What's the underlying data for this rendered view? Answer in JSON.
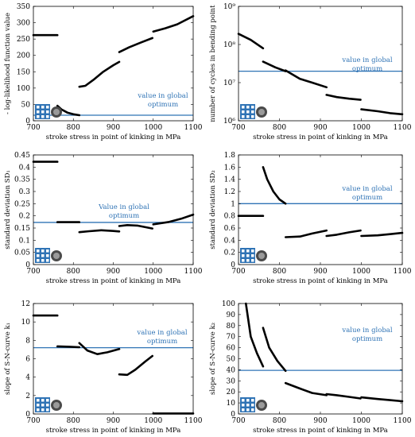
{
  "chart_data": [
    {
      "type": "line",
      "xlabel": "stroke stress in point of kinking in MPa",
      "ylabel": "- log-likelihood function value",
      "xlim": [
        700,
        1100
      ],
      "ylim": [
        0,
        350
      ],
      "xticks": [
        700,
        800,
        900,
        1000,
        1100
      ],
      "yticks": [
        0,
        50,
        100,
        150,
        200,
        250,
        300,
        350
      ],
      "reference": {
        "value": 17,
        "label": [
          "value in global",
          "optimum"
        ],
        "color": "#2f73b5"
      },
      "segments": [
        [
          [
            700,
            262
          ],
          [
            760,
            262
          ]
        ],
        [
          [
            760,
            46
          ],
          [
            770,
            35
          ],
          [
            785,
            25
          ],
          [
            800,
            20
          ],
          [
            815,
            17
          ]
        ],
        [
          [
            815,
            104
          ],
          [
            830,
            107
          ],
          [
            850,
            125
          ],
          [
            875,
            150
          ],
          [
            900,
            170
          ],
          [
            915,
            180
          ]
        ],
        [
          [
            915,
            210
          ],
          [
            940,
            225
          ],
          [
            970,
            240
          ],
          [
            998,
            253
          ]
        ],
        [
          [
            1000,
            273
          ],
          [
            1030,
            283
          ],
          [
            1060,
            295
          ],
          [
            1100,
            320
          ]
        ]
      ]
    },
    {
      "type": "line",
      "xlabel": "stroke stress in point of kinking in MPa",
      "ylabel": "number of cycles in bending point",
      "xlim": [
        700,
        1100
      ],
      "ylim": [
        6,
        9
      ],
      "log_y": true,
      "yticks": [
        6,
        7,
        8,
        9
      ],
      "yticklabels": [
        "10⁶",
        "10⁷",
        "10⁸",
        "10⁹"
      ],
      "xticks": [
        700,
        800,
        900,
        1000,
        1100
      ],
      "reference": {
        "value": 7.3,
        "label": [
          "value in global",
          "optimum"
        ],
        "color": "#2f73b5"
      },
      "segments": [
        [
          [
            700,
            8.28
          ],
          [
            730,
            8.12
          ],
          [
            760,
            7.9
          ]
        ],
        [
          [
            760,
            7.55
          ],
          [
            790,
            7.4
          ],
          [
            815,
            7.3
          ]
        ],
        [
          [
            815,
            7.32
          ],
          [
            850,
            7.1
          ],
          [
            880,
            7.0
          ],
          [
            915,
            6.88
          ]
        ],
        [
          [
            915,
            6.68
          ],
          [
            940,
            6.62
          ],
          [
            970,
            6.58
          ],
          [
            998,
            6.55
          ]
        ],
        [
          [
            1000,
            6.3
          ],
          [
            1040,
            6.25
          ],
          [
            1070,
            6.2
          ],
          [
            1100,
            6.17
          ]
        ]
      ]
    },
    {
      "type": "line",
      "xlabel": "stroke stress in point of kinking in MPa",
      "ylabel": "standard deviation SD₁",
      "xlim": [
        700,
        1100
      ],
      "ylim": [
        0,
        0.45
      ],
      "xticks": [
        700,
        800,
        900,
        1000,
        1100
      ],
      "yticks": [
        0,
        0.05,
        0.1,
        0.15,
        0.2,
        0.25,
        0.3,
        0.35,
        0.4,
        0.45
      ],
      "yticklabels": [
        "0",
        "0.05",
        "0.1",
        "0.15",
        "0.2",
        "0.25",
        "0.3",
        "0.35",
        "0.4",
        "0.45"
      ],
      "reference": {
        "value": 0.173,
        "label": [
          "Value in global",
          "optimum"
        ],
        "color": "#2f73b5"
      },
      "segments": [
        [
          [
            700,
            0.422
          ],
          [
            760,
            0.422
          ]
        ],
        [
          [
            760,
            0.174
          ],
          [
            815,
            0.174
          ]
        ],
        [
          [
            815,
            0.133
          ],
          [
            840,
            0.137
          ],
          [
            870,
            0.141
          ],
          [
            900,
            0.138
          ],
          [
            915,
            0.136
          ]
        ],
        [
          [
            915,
            0.158
          ],
          [
            935,
            0.162
          ],
          [
            960,
            0.16
          ],
          [
            998,
            0.148
          ]
        ],
        [
          [
            1000,
            0.165
          ],
          [
            1040,
            0.175
          ],
          [
            1070,
            0.188
          ],
          [
            1100,
            0.205
          ]
        ]
      ]
    },
    {
      "type": "line",
      "xlabel": "stroke stress in point of kinking in MPa",
      "ylabel": "standard deviation SD₂",
      "xlim": [
        700,
        1100
      ],
      "ylim": [
        0,
        1.8
      ],
      "xticks": [
        700,
        800,
        900,
        1000,
        1100
      ],
      "yticks": [
        0,
        0.2,
        0.4,
        0.6,
        0.8,
        1,
        1.2,
        1.4,
        1.6,
        1.8
      ],
      "yticklabels": [
        "0",
        "0.2",
        "0.4",
        "0.6",
        "0.8",
        "1",
        "1.2",
        "1.4",
        "1.6",
        "1.8"
      ],
      "reference": {
        "value": 1.0,
        "label": [
          "value in global",
          "optimum"
        ],
        "color": "#2f73b5"
      },
      "segments": [
        [
          [
            700,
            0.8
          ],
          [
            760,
            0.8
          ]
        ],
        [
          [
            760,
            1.6
          ],
          [
            770,
            1.4
          ],
          [
            785,
            1.2
          ],
          [
            800,
            1.07
          ],
          [
            815,
            1.0
          ]
        ],
        [
          [
            815,
            0.45
          ],
          [
            850,
            0.46
          ],
          [
            880,
            0.51
          ],
          [
            915,
            0.56
          ]
        ],
        [
          [
            915,
            0.47
          ],
          [
            940,
            0.49
          ],
          [
            970,
            0.53
          ],
          [
            998,
            0.56
          ]
        ],
        [
          [
            1000,
            0.47
          ],
          [
            1040,
            0.48
          ],
          [
            1070,
            0.5
          ],
          [
            1100,
            0.52
          ]
        ]
      ]
    },
    {
      "type": "line",
      "xlabel": "stroke stress in point of kinking in MPa",
      "ylabel": "slope of S-N-curve k₁",
      "xlim": [
        700,
        1100
      ],
      "ylim": [
        0,
        12
      ],
      "xticks": [
        700,
        800,
        900,
        1000,
        1100
      ],
      "yticks": [
        0,
        2,
        4,
        6,
        8,
        10,
        12
      ],
      "reference": {
        "value": 7.2,
        "label": [
          "value in global",
          "optimum"
        ],
        "color": "#2f73b5"
      },
      "segments": [
        [
          [
            700,
            10.7
          ],
          [
            760,
            10.7
          ]
        ],
        [
          [
            760,
            7.35
          ],
          [
            790,
            7.3
          ],
          [
            815,
            7.25
          ]
        ],
        [
          [
            815,
            7.7
          ],
          [
            835,
            6.9
          ],
          [
            860,
            6.5
          ],
          [
            885,
            6.7
          ],
          [
            915,
            7.05
          ]
        ],
        [
          [
            915,
            4.3
          ],
          [
            935,
            4.25
          ],
          [
            955,
            4.8
          ],
          [
            980,
            5.7
          ],
          [
            998,
            6.3
          ]
        ],
        [
          [
            1000,
            0.05
          ],
          [
            1050,
            0.05
          ],
          [
            1100,
            0.05
          ]
        ]
      ]
    },
    {
      "type": "line",
      "xlabel": "stroke stress in point of kinking in MPa",
      "ylabel": "slope of S-N-curve k₂",
      "xlim": [
        700,
        1100
      ],
      "ylim": [
        0,
        100
      ],
      "xticks": [
        700,
        800,
        900,
        1000,
        1100
      ],
      "yticks": [
        0,
        10,
        20,
        30,
        40,
        50,
        60,
        70,
        80,
        90,
        100
      ],
      "reference": {
        "value": 39.5,
        "label": [
          "value in global",
          "optimum"
        ],
        "color": "#2f73b5"
      },
      "segments": [
        [
          [
            718,
            100
          ],
          [
            730,
            70
          ],
          [
            745,
            55
          ],
          [
            760,
            43
          ]
        ],
        [
          [
            760,
            78
          ],
          [
            775,
            60
          ],
          [
            795,
            48
          ],
          [
            815,
            39
          ]
        ],
        [
          [
            815,
            28
          ],
          [
            850,
            23
          ],
          [
            880,
            19
          ],
          [
            915,
            17
          ]
        ],
        [
          [
            915,
            18
          ],
          [
            940,
            17
          ],
          [
            970,
            15.5
          ],
          [
            998,
            14
          ]
        ],
        [
          [
            1000,
            15
          ],
          [
            1040,
            13.5
          ],
          [
            1070,
            12.5
          ],
          [
            1100,
            11.5
          ]
        ]
      ]
    }
  ]
}
